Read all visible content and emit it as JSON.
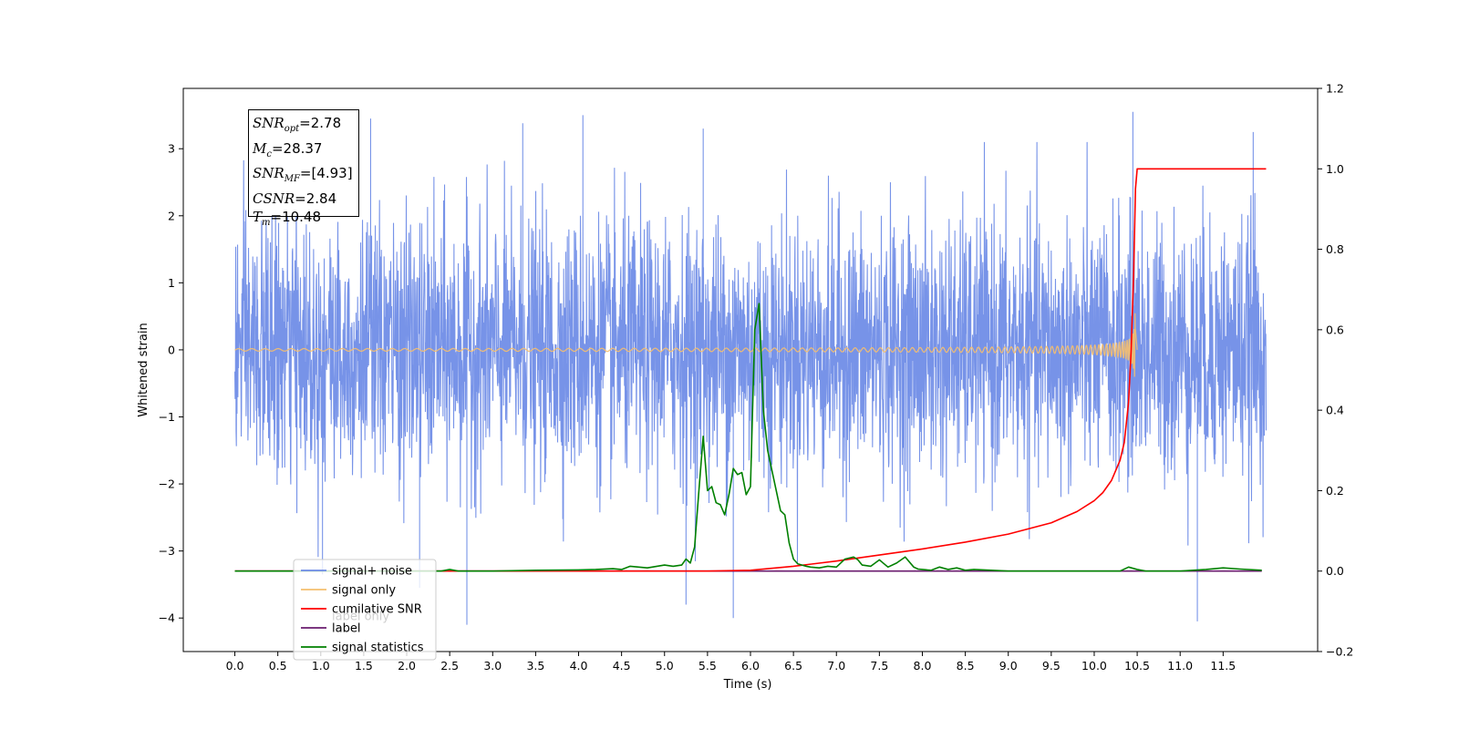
{
  "chart_data": {
    "type": "line",
    "xlabel": "Time (s)",
    "ylabel": "Whitened strain",
    "xlim": [
      -0.6,
      12.6
    ],
    "ylim": [
      -4.5,
      3.9
    ],
    "y2lim": [
      -0.2,
      1.2
    ],
    "x_ticks": [
      0.0,
      0.5,
      1.0,
      1.5,
      2.0,
      2.5,
      3.0,
      3.5,
      4.0,
      4.5,
      5.0,
      5.5,
      6.0,
      6.5,
      7.0,
      7.5,
      8.0,
      8.5,
      9.0,
      9.5,
      10.0,
      10.5,
      11.0,
      11.5
    ],
    "x_tick_labels": [
      "0.0",
      "0.5",
      "1.0",
      "1.5",
      "2.0",
      "2.5",
      "3.0",
      "3.5",
      "4.0",
      "4.5",
      "5.0",
      "5.5",
      "6.0",
      "6.5",
      "7.0",
      "7.5",
      "8.0",
      "8.5",
      "9.0",
      "9.5",
      "10.0",
      "10.5",
      "11.0",
      "11.5"
    ],
    "y_ticks": [
      3,
      2,
      1,
      0,
      -1,
      -2,
      -3,
      -4
    ],
    "y_tick_labels": [
      "3",
      "2",
      "1",
      "0",
      "−1",
      "−2",
      "−3",
      "−4"
    ],
    "y2_ticks": [
      1.2,
      1.0,
      0.8,
      0.6,
      0.4,
      0.2,
      0.0,
      -0.2
    ],
    "y2_tick_labels": [
      "1.2",
      "1.0",
      "0.8",
      "0.6",
      "0.4",
      "0.2",
      "0.0",
      "−0.2"
    ],
    "grid": false,
    "legend_position": "bottom-left",
    "legend": [
      {
        "label": "signal+ noise",
        "color": "#6b8ae6"
      },
      {
        "label": "signal only",
        "color": "#f5bf6e"
      },
      {
        "label": "cumilative SNR",
        "color": "#ff0000"
      },
      {
        "label": "label",
        "color": "#6a1b6e"
      },
      {
        "label": "signal statistics",
        "color": "#008000"
      }
    ],
    "legend_occluded_text": "label only",
    "series": [
      {
        "name": "signal+ noise",
        "axis": "left",
        "color": "#6b8ae6",
        "x_range": [
          0.0,
          12.0
        ],
        "amplitude_typical": 1.0,
        "spikes": [
          {
            "x": 5.25,
            "y": -3.8
          },
          {
            "x": 5.8,
            "y": -4.0
          },
          {
            "x": 2.7,
            "y": -4.1
          },
          {
            "x": 11.2,
            "y": -4.05
          },
          {
            "x": 10.45,
            "y": 3.55
          },
          {
            "x": 4.05,
            "y": 3.5
          },
          {
            "x": 1.58,
            "y": 3.45
          },
          {
            "x": 3.35,
            "y": 3.38
          },
          {
            "x": 5.45,
            "y": 3.3
          },
          {
            "x": 11.85,
            "y": 3.25
          },
          {
            "x": 1.02,
            "y": -3.35
          },
          {
            "x": 2.15,
            "y": -3.55
          }
        ]
      },
      {
        "name": "signal only",
        "axis": "left",
        "color": "#f5bf6e",
        "x_range": [
          0.0,
          10.48
        ],
        "peak_x": 10.48,
        "peak_amplitude": 0.62
      },
      {
        "name": "cumilative SNR",
        "axis": "right",
        "color": "#ff0000",
        "x": [
          0.0,
          5.5,
          6.0,
          6.5,
          7.0,
          7.5,
          8.0,
          8.5,
          9.0,
          9.5,
          9.8,
          10.0,
          10.1,
          10.2,
          10.3,
          10.35,
          10.4,
          10.43,
          10.46,
          10.48,
          10.5,
          12.0
        ],
        "y": [
          0.0,
          0.0,
          0.002,
          0.012,
          0.025,
          0.04,
          0.055,
          0.072,
          0.092,
          0.12,
          0.148,
          0.175,
          0.195,
          0.225,
          0.275,
          0.32,
          0.42,
          0.55,
          0.75,
          0.95,
          1.0,
          1.0
        ]
      },
      {
        "name": "label",
        "axis": "right",
        "color": "#6a1b6e",
        "x": [
          0.0,
          11.95
        ],
        "y": [
          0.0,
          0.0
        ]
      },
      {
        "name": "signal statistics",
        "axis": "right",
        "color": "#008000",
        "x": [
          0.0,
          2.4,
          2.5,
          2.6,
          3.0,
          3.5,
          4.0,
          4.2,
          4.4,
          4.5,
          4.6,
          4.8,
          5.0,
          5.1,
          5.2,
          5.25,
          5.3,
          5.35,
          5.4,
          5.45,
          5.5,
          5.55,
          5.6,
          5.65,
          5.7,
          5.75,
          5.8,
          5.85,
          5.9,
          5.95,
          6.0,
          6.05,
          6.1,
          6.15,
          6.2,
          6.25,
          6.3,
          6.35,
          6.4,
          6.45,
          6.5,
          6.55,
          6.6,
          6.65,
          6.7,
          6.8,
          6.9,
          7.0,
          7.1,
          7.2,
          7.25,
          7.3,
          7.4,
          7.5,
          7.6,
          7.7,
          7.8,
          7.9,
          7.95,
          8.0,
          8.1,
          8.2,
          8.3,
          8.4,
          8.5,
          8.6,
          9.0,
          10.0,
          10.3,
          10.4,
          10.5,
          10.6,
          11.0,
          11.3,
          11.5,
          11.7,
          11.95
        ],
        "y": [
          0.0,
          0.0,
          0.004,
          0.0,
          0.0,
          0.002,
          0.003,
          0.004,
          0.006,
          0.004,
          0.012,
          0.008,
          0.015,
          0.012,
          0.015,
          0.03,
          0.02,
          0.06,
          0.2,
          0.335,
          0.2,
          0.21,
          0.17,
          0.165,
          0.14,
          0.19,
          0.255,
          0.24,
          0.245,
          0.19,
          0.21,
          0.6,
          0.665,
          0.4,
          0.3,
          0.25,
          0.2,
          0.15,
          0.14,
          0.07,
          0.03,
          0.018,
          0.015,
          0.012,
          0.01,
          0.008,
          0.012,
          0.01,
          0.03,
          0.035,
          0.028,
          0.015,
          0.012,
          0.028,
          0.01,
          0.02,
          0.035,
          0.01,
          0.005,
          0.004,
          0.002,
          0.01,
          0.004,
          0.008,
          0.002,
          0.004,
          0.0,
          0.0,
          0.0,
          0.01,
          0.004,
          0.0,
          0.0,
          0.004,
          0.008,
          0.005,
          0.002
        ]
      }
    ]
  },
  "stats_box": {
    "snr_opt_main": "SNR",
    "snr_opt_sub": "opt",
    "snr_opt_val": "=2.78",
    "mc_main": "M",
    "mc_sub": "c",
    "mc_val": "=28.37",
    "snr_mf_main": "SNR",
    "snr_mf_sub": "MF",
    "snr_mf_val": "=[4.93]",
    "csnr_main": "CSNR",
    "csnr_val": "=2.84",
    "tm_main": "T",
    "tm_sub": "m",
    "tm_val": "=10.48"
  }
}
